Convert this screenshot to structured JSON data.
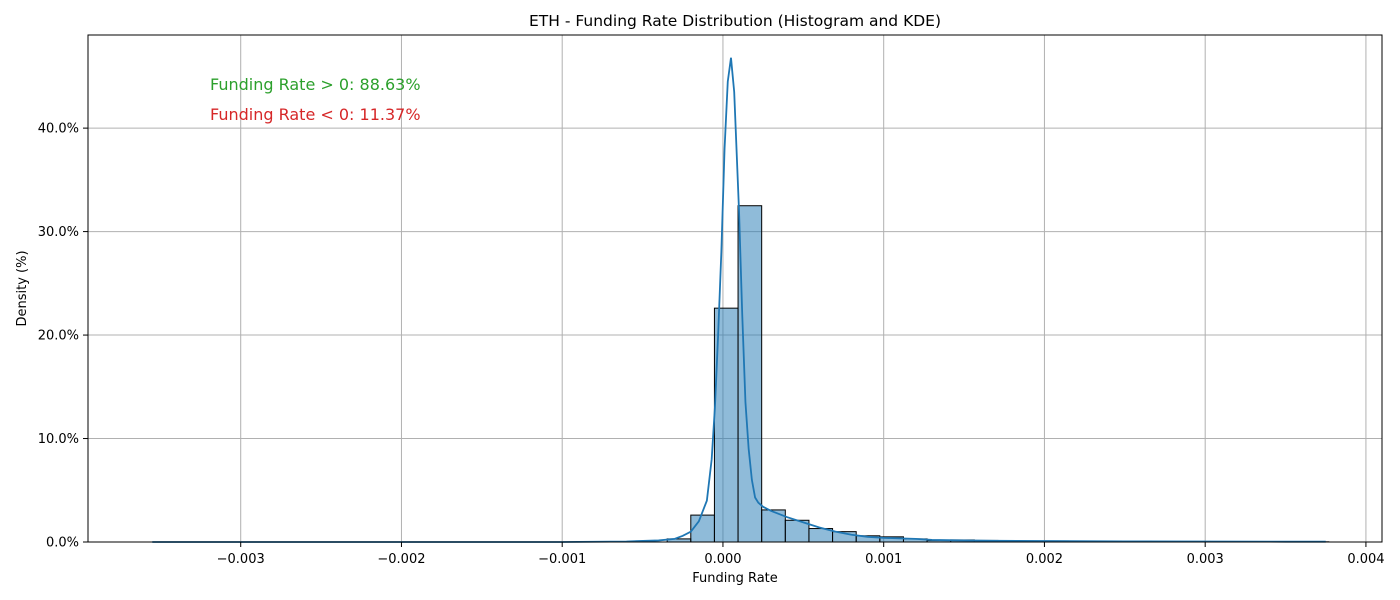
{
  "chart_data": {
    "type": "histogram+kde",
    "title": "ETH - Funding Rate Distribution (Histogram and KDE)",
    "xlabel": "Funding Rate",
    "ylabel": "Density (%)",
    "xlim": [
      -0.00395,
      0.0041
    ],
    "ylim": [
      0,
      49
    ],
    "grid": true,
    "x_ticks": [
      -0.003,
      -0.002,
      -0.001,
      0.0,
      0.001,
      0.002,
      0.003,
      0.004
    ],
    "x_tick_labels": [
      "−0.003",
      "−0.002",
      "−0.001",
      "0.000",
      "0.001",
      "0.002",
      "0.003",
      "0.004"
    ],
    "y_ticks": [
      0,
      10,
      20,
      30,
      40
    ],
    "y_tick_labels": [
      "0.0%",
      "10.0%",
      "20.0%",
      "30.0%",
      "40.0%"
    ],
    "bin_width": 0.000147,
    "bins": [
      {
        "x0": -0.000347,
        "value": 0.3
      },
      {
        "x0": -0.0002,
        "value": 2.6
      },
      {
        "x0": -5.3e-05,
        "value": 22.6
      },
      {
        "x0": 9.4e-05,
        "value": 32.5
      },
      {
        "x0": 0.000241,
        "value": 3.1
      },
      {
        "x0": 0.000388,
        "value": 2.1
      },
      {
        "x0": 0.000535,
        "value": 1.3
      },
      {
        "x0": 0.000682,
        "value": 1.0
      },
      {
        "x0": 0.000829,
        "value": 0.6
      },
      {
        "x0": 0.000976,
        "value": 0.5
      },
      {
        "x0": 0.001123,
        "value": 0.3
      },
      {
        "x0": 0.00127,
        "value": 0.15
      },
      {
        "x0": 0.001417,
        "value": 0.2
      },
      {
        "x0": 0.001564,
        "value": 0.15
      },
      {
        "x0": 0.001711,
        "value": 0.1
      },
      {
        "x0": 0.001858,
        "value": 0.05
      },
      {
        "x0": 0.002005,
        "value": 0.1
      },
      {
        "x0": 0.002152,
        "value": 0.05
      },
      {
        "x0": 0.002299,
        "value": 0.05
      },
      {
        "x0": 0.002446,
        "value": 0.03
      },
      {
        "x0": 0.002593,
        "value": 0.03
      },
      {
        "x0": 0.00274,
        "value": 0.03
      },
      {
        "x0": 0.002887,
        "value": 0.05
      },
      {
        "x0": 0.003034,
        "value": 0.03
      },
      {
        "x0": 0.003181,
        "value": 0.02
      },
      {
        "x0": 0.003328,
        "value": 0.02
      },
      {
        "x0": 0.003475,
        "value": 0.02
      },
      {
        "x0": 0.003622,
        "value": 0.02
      }
    ],
    "kde": {
      "x": [
        -0.00355,
        -0.003,
        -0.002,
        -0.001,
        -0.0006,
        -0.0004,
        -0.0003,
        -0.00025,
        -0.0002,
        -0.00015,
        -0.0001,
        -7e-05,
        -5e-05,
        -3e-05,
        -1e-05,
        1e-05,
        3e-05,
        5e-05,
        7e-05,
        0.0001,
        0.00012,
        0.00014,
        0.00016,
        0.00018,
        0.0002,
        0.00022,
        0.00025,
        0.0003,
        0.0004,
        0.0005,
        0.0006,
        0.0007,
        0.0008,
        0.0009,
        0.001,
        0.0011,
        0.0012,
        0.0013,
        0.0015,
        0.0017,
        0.002,
        0.0025,
        0.003,
        0.0035,
        0.00375
      ],
      "y": [
        0.0,
        0.0,
        0.0,
        0.0,
        0.05,
        0.15,
        0.3,
        0.6,
        1.0,
        2.0,
        4.0,
        8.0,
        13.0,
        20.0,
        28.0,
        38.0,
        44.5,
        46.8,
        43.5,
        32.0,
        22.0,
        13.5,
        9.0,
        6.0,
        4.3,
        3.8,
        3.4,
        3.0,
        2.4,
        1.9,
        1.4,
        1.0,
        0.7,
        0.5,
        0.4,
        0.35,
        0.3,
        0.2,
        0.15,
        0.12,
        0.1,
        0.06,
        0.05,
        0.03,
        0.03
      ]
    },
    "annotations": [
      {
        "text": "Funding Rate > 0: 88.63%",
        "color": "#2ca02c"
      },
      {
        "text": "Funding Rate < 0: 11.37%",
        "color": "#d62728"
      }
    ],
    "colors": {
      "bar_fill": "#1f77b4",
      "bar_edge": "#000000",
      "kde_line": "#1f77b4",
      "grid": "#b0b0b0"
    }
  }
}
